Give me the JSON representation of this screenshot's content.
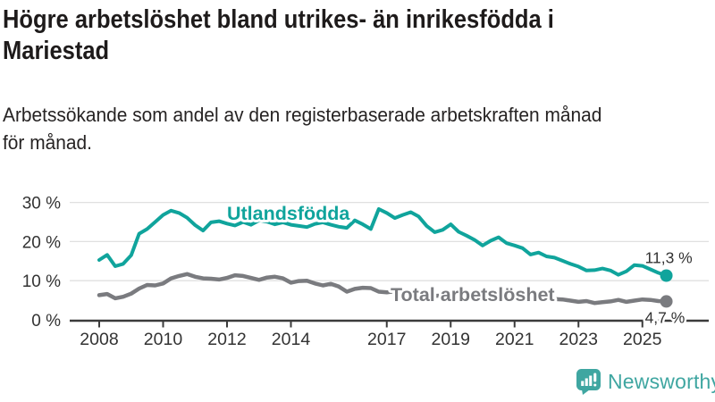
{
  "header": {
    "title_lines": [
      "Högre arbetslöshet bland utrikes- än inrikesfödda i",
      "Mariestad"
    ],
    "subtitle_lines": [
      "Arbetssökande som andel av den registerbaserade arbetskraften månad",
      "för månad."
    ]
  },
  "chart_data": {
    "type": "line",
    "title": "Högre arbetslöshet bland utrikes- än inrikesfödda i Mariestad",
    "subtitle": "Arbetssökande som andel av den registerbaserade arbetskraften månad för månad.",
    "xlabel": "",
    "ylabel": "",
    "ylim": [
      0,
      30
    ],
    "xlim": [
      2008,
      2025.75
    ],
    "grid": true,
    "y_ticks": [
      {
        "v": 30,
        "label": "30 %"
      },
      {
        "v": 20,
        "label": "20 %"
      },
      {
        "v": 10,
        "label": "10 %"
      },
      {
        "v": 0,
        "label": "0 %"
      }
    ],
    "x_ticks": [
      {
        "v": 2008,
        "label": "2008"
      },
      {
        "v": 2010,
        "label": "2010"
      },
      {
        "v": 2012,
        "label": "2012"
      },
      {
        "v": 2014,
        "label": "2014"
      },
      {
        "v": 2017,
        "label": "2017"
      },
      {
        "v": 2019,
        "label": "2019"
      },
      {
        "v": 2021,
        "label": "2021"
      },
      {
        "v": 2023,
        "label": "2023"
      },
      {
        "v": 2025,
        "label": "2025"
      }
    ],
    "x": [
      2008.0,
      2008.25,
      2008.5,
      2008.75,
      2009.0,
      2009.25,
      2009.5,
      2009.75,
      2010.0,
      2010.25,
      2010.5,
      2010.75,
      2011.0,
      2011.25,
      2011.5,
      2011.75,
      2012.0,
      2012.25,
      2012.5,
      2012.75,
      2013.0,
      2013.25,
      2013.5,
      2013.75,
      2014.0,
      2014.25,
      2014.5,
      2014.75,
      2015.0,
      2015.25,
      2015.5,
      2015.75,
      2016.0,
      2016.25,
      2016.5,
      2016.75,
      2017.0,
      2017.25,
      2017.5,
      2017.75,
      2018.0,
      2018.25,
      2018.5,
      2018.75,
      2019.0,
      2019.25,
      2019.5,
      2019.75,
      2020.0,
      2020.25,
      2020.5,
      2020.75,
      2021.0,
      2021.25,
      2021.5,
      2021.75,
      2022.0,
      2022.25,
      2022.5,
      2022.75,
      2023.0,
      2023.25,
      2023.5,
      2023.75,
      2024.0,
      2024.25,
      2024.5,
      2024.75,
      2025.0,
      2025.25,
      2025.5,
      2025.75
    ],
    "series": [
      {
        "name": "Utlandsfödda",
        "color": "#10A49C",
        "end_label": "11,3 %",
        "end_value": 11.3,
        "values": [
          15.3,
          16.6,
          13.7,
          14.3,
          16.5,
          22.0,
          23.2,
          25.0,
          26.8,
          27.9,
          27.3,
          26.1,
          24.2,
          22.8,
          24.9,
          25.2,
          24.6,
          24.1,
          25.0,
          24.3,
          25.4,
          25.1,
          24.4,
          24.9,
          24.3,
          24.0,
          23.7,
          24.5,
          24.9,
          24.3,
          23.8,
          23.5,
          25.4,
          24.4,
          23.2,
          28.3,
          27.3,
          26.0,
          26.8,
          27.5,
          26.4,
          24.0,
          22.4,
          23.0,
          24.4,
          22.5,
          21.5,
          20.4,
          19.0,
          20.2,
          21.1,
          19.6,
          19.0,
          18.3,
          16.7,
          17.2,
          16.2,
          15.9,
          15.1,
          14.3,
          13.6,
          12.6,
          12.7,
          13.1,
          12.6,
          11.5,
          12.4,
          14.0,
          13.8,
          12.9,
          12.0,
          11.3
        ]
      },
      {
        "name": "Total arbetslöshet",
        "color": "#7A7B7F",
        "end_label": "4,7 %",
        "end_value": 4.7,
        "values": [
          6.3,
          6.6,
          5.5,
          5.9,
          6.7,
          8.0,
          8.9,
          8.8,
          9.3,
          10.6,
          11.2,
          11.7,
          11.0,
          10.6,
          10.5,
          10.3,
          10.7,
          11.4,
          11.2,
          10.7,
          10.2,
          10.8,
          11.0,
          10.6,
          9.5,
          9.9,
          10.0,
          9.3,
          8.8,
          9.2,
          8.5,
          7.2,
          7.9,
          8.2,
          8.1,
          7.2,
          7.0,
          7.3,
          7.0,
          6.8,
          6.5,
          6.3,
          6.1,
          6.2,
          6.0,
          5.8,
          5.9,
          6.0,
          6.2,
          6.9,
          7.2,
          6.8,
          6.5,
          6.2,
          5.8,
          5.6,
          5.4,
          5.3,
          5.2,
          4.9,
          4.6,
          4.8,
          4.3,
          4.5,
          4.7,
          5.1,
          4.6,
          4.9,
          5.2,
          5.1,
          4.8,
          4.7
        ]
      }
    ],
    "legend_position": "inline-labels",
    "colors": {
      "axis_text": "#333333",
      "gridline": "#e0e0e0",
      "baseline": "#3b3b3b",
      "title_text": "#1e1b1b"
    }
  },
  "branding": {
    "logo_text": "Newsworthy",
    "logo_color": "#3FA6A1"
  }
}
